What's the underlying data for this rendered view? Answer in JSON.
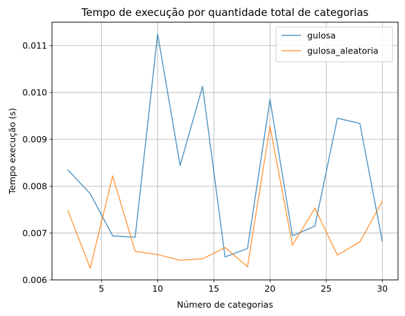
{
  "chart_data": {
    "type": "line",
    "title": "Tempo de execução por quantidade total de categorias",
    "xlabel": "Número de categorias",
    "ylabel": "Tempo execução (s)",
    "xlim": [
      0.6,
      31.4
    ],
    "ylim": [
      0.006,
      0.0115
    ],
    "xticks": [
      5,
      10,
      15,
      20,
      25,
      30
    ],
    "yticks": [
      0.006,
      0.007,
      0.008,
      0.009,
      0.01,
      0.011
    ],
    "ytick_labels": [
      "0.006",
      "0.007",
      "0.008",
      "0.009",
      "0.010",
      "0.011"
    ],
    "grid": true,
    "legend_position": "top-right",
    "x": [
      2,
      4,
      6,
      8,
      10,
      12,
      14,
      16,
      18,
      20,
      22,
      24,
      26,
      28,
      30
    ],
    "series": [
      {
        "name": "gulosa",
        "color": "#1f77b4",
        "values": [
          0.00835,
          0.00784,
          0.00694,
          0.00691,
          0.01125,
          0.00844,
          0.01013,
          0.00649,
          0.00667,
          0.00985,
          0.00694,
          0.00715,
          0.00945,
          0.00934,
          0.00682
        ]
      },
      {
        "name": "gulosa_aleatoria",
        "color": "#ff7f0e",
        "values": [
          0.00749,
          0.00625,
          0.00822,
          0.00661,
          0.00654,
          0.00642,
          0.00645,
          0.00669,
          0.00628,
          0.00928,
          0.00674,
          0.00753,
          0.00653,
          0.00681,
          0.00768
        ]
      }
    ]
  }
}
